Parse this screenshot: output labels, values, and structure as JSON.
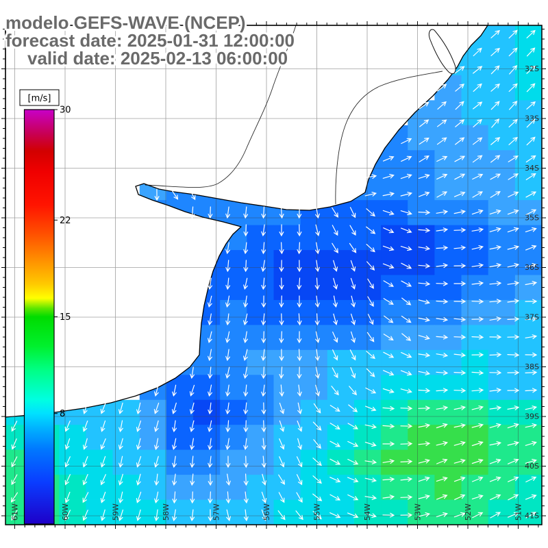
{
  "title": {
    "line1": "modelo GEFS-WAVE (NCEP)",
    "line2": "forecast date: 2025-01-31 12:00:00",
    "line3": "valid date: 2025-02-13 06:00:00"
  },
  "colorbar": {
    "unit_label": "[m/s]",
    "min": 0,
    "max": 30,
    "tick_values": [
      30,
      22,
      15,
      8
    ],
    "gradient": [
      [
        0.0,
        "#1E00C8"
      ],
      [
        0.1,
        "#0A3CFF"
      ],
      [
        0.18,
        "#0078FF"
      ],
      [
        0.233,
        "#00B4FF"
      ],
      [
        0.267,
        "#00E1FF"
      ],
      [
        0.3,
        "#00FFE1"
      ],
      [
        0.37,
        "#00FF87"
      ],
      [
        0.43,
        "#00F02D"
      ],
      [
        0.5,
        "#00DC00"
      ],
      [
        0.52,
        "#5AE600"
      ],
      [
        0.545,
        "#FFFF00"
      ],
      [
        0.58,
        "#FFC800"
      ],
      [
        0.63,
        "#FF9600"
      ],
      [
        0.7,
        "#FF5000"
      ],
      [
        0.77,
        "#FF1400"
      ],
      [
        0.85,
        "#F00000"
      ],
      [
        0.9,
        "#D20000"
      ],
      [
        0.94,
        "#C80050"
      ],
      [
        1.0,
        "#C800C8"
      ]
    ]
  },
  "map": {
    "lat_labels": [
      "32S",
      "33S",
      "34S",
      "35S",
      "36S",
      "37S",
      "38S",
      "39S",
      "40S",
      "41S"
    ],
    "lon_labels": [
      "61W",
      "60W",
      "59W",
      "58W",
      "57W",
      "56W",
      "55W",
      "54W",
      "53W",
      "52W",
      "51W"
    ]
  },
  "chart_data": {
    "type": "heatmap",
    "title": "modelo GEFS-WAVE (NCEP)",
    "variable": "wind / wave speed with direction vectors",
    "units": "m/s",
    "scale_range": [
      0,
      30
    ],
    "legend_ticks": [
      30,
      22,
      15,
      8
    ],
    "region": {
      "lon_west": "61W",
      "lon_east": "51W",
      "lat_north": "32S",
      "lat_south": "41S"
    },
    "arrow_color": "#ffffff",
    "colormap": {
      "4": "#0747F5",
      "5": "#0A64FF",
      "6": "#1E86FF",
      "7": "#3AA4FF",
      "8": "#22C3FF",
      "9": "#00DCEB",
      "10": "#00E6C3",
      "11": "#1EE98C",
      "12": "#36DF4B"
    },
    "grid": {
      "cols": 20,
      "rows": 20,
      "cell_format": "[speed_m_s, direction_deg_screen] or null for land",
      "cells": [
        [
          null,
          null,
          null,
          null,
          null,
          null,
          null,
          null,
          null,
          null,
          null,
          null,
          null,
          null,
          null,
          null,
          null,
          [
            8,
            -40
          ],
          [
            8,
            -40
          ],
          [
            9,
            -45
          ]
        ],
        [
          null,
          null,
          null,
          null,
          null,
          null,
          null,
          null,
          null,
          null,
          null,
          null,
          null,
          null,
          null,
          null,
          [
            8,
            -40
          ],
          [
            8,
            -40
          ],
          [
            8,
            -45
          ],
          [
            9,
            -45
          ]
        ],
        [
          null,
          null,
          null,
          null,
          null,
          null,
          null,
          null,
          null,
          null,
          null,
          null,
          null,
          null,
          null,
          null,
          [
            7,
            -40
          ],
          [
            8,
            -40
          ],
          [
            8,
            -45
          ],
          [
            9,
            -45
          ]
        ],
        [
          null,
          null,
          null,
          null,
          null,
          null,
          null,
          null,
          null,
          null,
          null,
          null,
          null,
          null,
          null,
          [
            7,
            -35
          ],
          [
            7,
            -40
          ],
          [
            8,
            -40
          ],
          [
            8,
            -45
          ],
          [
            8,
            -45
          ]
        ],
        [
          null,
          null,
          null,
          null,
          null,
          null,
          null,
          null,
          null,
          null,
          null,
          null,
          null,
          null,
          [
            6,
            -30
          ],
          [
            7,
            -35
          ],
          [
            7,
            -35
          ],
          [
            7,
            -40
          ],
          [
            8,
            -40
          ],
          [
            8,
            -40
          ]
        ],
        [
          null,
          null,
          null,
          null,
          null,
          null,
          null,
          null,
          null,
          null,
          null,
          null,
          null,
          [
            6,
            -20
          ],
          [
            6,
            -25
          ],
          [
            6,
            -30
          ],
          [
            7,
            -30
          ],
          [
            7,
            -35
          ],
          [
            7,
            -35
          ],
          [
            8,
            -35
          ]
        ],
        [
          null,
          null,
          null,
          null,
          null,
          [
            7,
            90
          ],
          [
            6,
            60
          ],
          [
            6,
            50
          ],
          [
            6,
            45
          ],
          [
            6,
            35
          ],
          [
            6,
            25
          ],
          [
            5,
            15
          ],
          [
            5,
            5
          ],
          [
            6,
            -10
          ],
          [
            6,
            -15
          ],
          [
            6,
            -20
          ],
          [
            7,
            -25
          ],
          [
            7,
            -30
          ],
          [
            7,
            -30
          ],
          [
            8,
            -30
          ]
        ],
        [
          null,
          null,
          null,
          null,
          null,
          [
            6,
            95
          ],
          [
            6,
            95
          ],
          [
            6,
            95
          ],
          [
            6,
            95
          ],
          [
            6,
            95
          ],
          [
            6,
            90
          ],
          [
            5,
            80
          ],
          [
            5,
            60
          ],
          [
            5,
            40
          ],
          [
            5,
            20
          ],
          [
            6,
            0
          ],
          [
            6,
            -10
          ],
          [
            6,
            -15
          ],
          [
            7,
            -20
          ],
          [
            7,
            -25
          ]
        ],
        [
          null,
          null,
          null,
          null,
          null,
          null,
          null,
          [
            6,
            95
          ],
          [
            6,
            95
          ],
          [
            5,
            95
          ],
          [
            5,
            90
          ],
          [
            5,
            80
          ],
          [
            5,
            60
          ],
          [
            5,
            40
          ],
          [
            4,
            20
          ],
          [
            4,
            5
          ],
          [
            5,
            -5
          ],
          [
            5,
            -10
          ],
          [
            6,
            -15
          ],
          [
            6,
            -20
          ]
        ],
        [
          null,
          null,
          null,
          null,
          null,
          null,
          null,
          [
            5,
            95
          ],
          [
            5,
            95
          ],
          [
            5,
            95
          ],
          [
            4,
            90
          ],
          [
            4,
            85
          ],
          [
            4,
            70
          ],
          [
            4,
            50
          ],
          [
            4,
            25
          ],
          [
            4,
            5
          ],
          [
            5,
            -5
          ],
          [
            5,
            -10
          ],
          [
            6,
            -10
          ],
          [
            6,
            -15
          ]
        ],
        [
          null,
          null,
          null,
          null,
          null,
          null,
          null,
          [
            5,
            100
          ],
          [
            5,
            100
          ],
          [
            5,
            95
          ],
          [
            4,
            90
          ],
          [
            4,
            85
          ],
          [
            4,
            75
          ],
          [
            4,
            55
          ],
          [
            5,
            30
          ],
          [
            5,
            10
          ],
          [
            5,
            0
          ],
          [
            6,
            -5
          ],
          [
            6,
            -10
          ],
          [
            7,
            -10
          ]
        ],
        [
          null,
          null,
          null,
          null,
          null,
          null,
          null,
          [
            5,
            100
          ],
          [
            6,
            100
          ],
          [
            5,
            95
          ],
          [
            5,
            90
          ],
          [
            5,
            85
          ],
          [
            5,
            75
          ],
          [
            5,
            60
          ],
          [
            6,
            35
          ],
          [
            6,
            15
          ],
          [
            6,
            5
          ],
          [
            7,
            0
          ],
          [
            7,
            -5
          ],
          [
            8,
            -5
          ]
        ],
        [
          null,
          null,
          null,
          null,
          null,
          null,
          null,
          [
            6,
            100
          ],
          [
            6,
            100
          ],
          [
            6,
            95
          ],
          [
            6,
            90
          ],
          [
            6,
            80
          ],
          [
            6,
            70
          ],
          [
            6,
            55
          ],
          [
            7,
            35
          ],
          [
            7,
            15
          ],
          [
            7,
            5
          ],
          [
            8,
            0
          ],
          [
            8,
            0
          ],
          [
            8,
            -5
          ]
        ],
        [
          null,
          null,
          null,
          null,
          null,
          null,
          [
            6,
            100
          ],
          [
            6,
            100
          ],
          [
            6,
            100
          ],
          [
            7,
            95
          ],
          [
            7,
            90
          ],
          [
            7,
            80
          ],
          [
            8,
            65
          ],
          [
            8,
            45
          ],
          [
            8,
            25
          ],
          [
            8,
            10
          ],
          [
            8,
            5
          ],
          [
            9,
            0
          ],
          [
            8,
            0
          ],
          [
            8,
            0
          ]
        ],
        [
          null,
          null,
          null,
          null,
          null,
          [
            6,
            105
          ],
          [
            5,
            105
          ],
          [
            5,
            100
          ],
          [
            6,
            100
          ],
          [
            6,
            95
          ],
          [
            7,
            85
          ],
          [
            7,
            70
          ],
          [
            8,
            50
          ],
          [
            8,
            30
          ],
          [
            9,
            15
          ],
          [
            9,
            5
          ],
          [
            9,
            0
          ],
          [
            9,
            -5
          ],
          [
            8,
            -5
          ],
          [
            8,
            -5
          ]
        ],
        [
          [
            9,
            110
          ],
          [
            8,
            110
          ],
          [
            8,
            110
          ],
          [
            8,
            110
          ],
          [
            8,
            105
          ],
          [
            7,
            105
          ],
          [
            5,
            105
          ],
          [
            4,
            100
          ],
          [
            5,
            95
          ],
          [
            6,
            90
          ],
          [
            7,
            75
          ],
          [
            8,
            55
          ],
          [
            8,
            35
          ],
          [
            9,
            20
          ],
          [
            10,
            5
          ],
          [
            11,
            -5
          ],
          [
            11,
            -10
          ],
          [
            11,
            -10
          ],
          [
            10,
            -10
          ],
          [
            10,
            -10
          ]
        ],
        [
          [
            10,
            115
          ],
          [
            10,
            115
          ],
          [
            9,
            110
          ],
          [
            8,
            110
          ],
          [
            8,
            105
          ],
          [
            7,
            105
          ],
          [
            5,
            100
          ],
          [
            5,
            100
          ],
          [
            6,
            95
          ],
          [
            7,
            85
          ],
          [
            8,
            70
          ],
          [
            8,
            50
          ],
          [
            9,
            30
          ],
          [
            10,
            15
          ],
          [
            11,
            0
          ],
          [
            12,
            -10
          ],
          [
            12,
            -15
          ],
          [
            12,
            -15
          ],
          [
            11,
            -15
          ],
          [
            11,
            -15
          ]
        ],
        [
          [
            11,
            115
          ],
          [
            10,
            115
          ],
          [
            9,
            110
          ],
          [
            9,
            110
          ],
          [
            8,
            105
          ],
          [
            8,
            105
          ],
          [
            6,
            100
          ],
          [
            6,
            95
          ],
          [
            7,
            90
          ],
          [
            7,
            80
          ],
          [
            8,
            65
          ],
          [
            9,
            45
          ],
          [
            10,
            25
          ],
          [
            11,
            10
          ],
          [
            12,
            -5
          ],
          [
            12,
            -15
          ],
          [
            12,
            -20
          ],
          [
            12,
            -20
          ],
          [
            11,
            -20
          ],
          [
            11,
            -20
          ]
        ],
        [
          [
            11,
            120
          ],
          [
            11,
            115
          ],
          [
            10,
            115
          ],
          [
            9,
            110
          ],
          [
            9,
            105
          ],
          [
            8,
            100
          ],
          [
            7,
            95
          ],
          [
            7,
            90
          ],
          [
            7,
            85
          ],
          [
            8,
            75
          ],
          [
            8,
            60
          ],
          [
            9,
            40
          ],
          [
            9,
            25
          ],
          [
            10,
            10
          ],
          [
            11,
            -5
          ],
          [
            11,
            -15
          ],
          [
            12,
            -20
          ],
          [
            11,
            -20
          ],
          [
            11,
            -25
          ],
          [
            10,
            -25
          ]
        ],
        [
          [
            11,
            120
          ],
          [
            11,
            120
          ],
          [
            10,
            115
          ],
          [
            9,
            110
          ],
          [
            9,
            105
          ],
          [
            9,
            100
          ],
          [
            8,
            95
          ],
          [
            8,
            90
          ],
          [
            8,
            80
          ],
          [
            8,
            70
          ],
          [
            9,
            55
          ],
          [
            9,
            40
          ],
          [
            9,
            25
          ],
          [
            10,
            10
          ],
          [
            10,
            0
          ],
          [
            11,
            -10
          ],
          [
            11,
            -20
          ],
          [
            11,
            -25
          ],
          [
            10,
            -25
          ],
          [
            10,
            -30
          ]
        ]
      ]
    }
  }
}
